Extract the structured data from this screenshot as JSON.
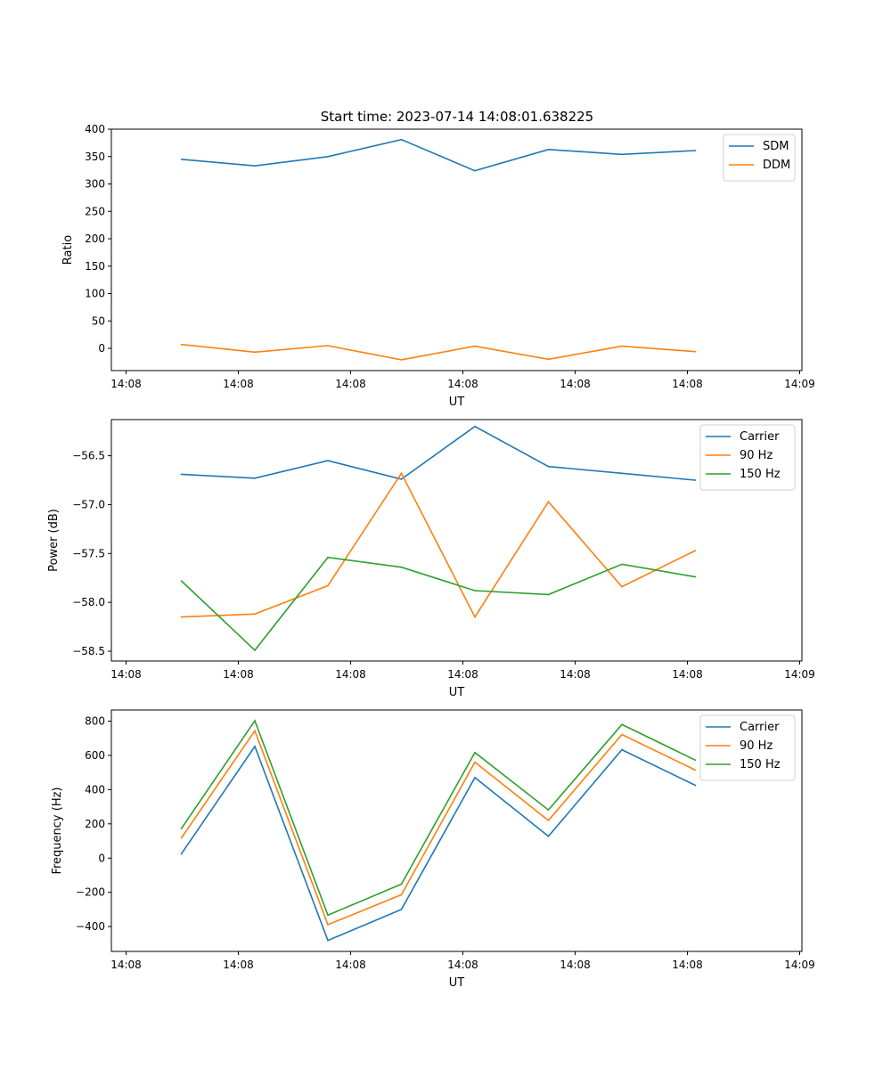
{
  "figure_title": "Start time: 2023-07-14 14:08:01.638225",
  "chart_data": [
    {
      "type": "line",
      "xlabel": "UT",
      "ylabel": "Ratio",
      "x_ticks": [
        "14:08",
        "14:08",
        "14:08",
        "14:08",
        "14:08",
        "14:08",
        "14:09"
      ],
      "y_ticks": [
        0,
        50,
        100,
        150,
        200,
        250,
        300,
        350,
        400
      ],
      "ylim": [
        -40.6,
        400
      ],
      "x_samples": [
        1,
        2,
        3,
        4,
        5,
        6,
        7,
        8
      ],
      "legend_position": "upper right",
      "series": [
        {
          "name": "SDM",
          "color": "#1f77b4",
          "values": [
            345,
            333,
            350,
            381,
            324,
            363,
            354,
            361
          ]
        },
        {
          "name": "DDM",
          "color": "#ff7f0e",
          "values": [
            7,
            -7,
            5,
            -21,
            4,
            -20,
            4,
            -6
          ]
        }
      ]
    },
    {
      "type": "line",
      "xlabel": "UT",
      "ylabel": "Power (dB)",
      "x_ticks": [
        "14:08",
        "14:08",
        "14:08",
        "14:08",
        "14:08",
        "14:08",
        "14:09"
      ],
      "y_ticks": [
        "−58.5",
        "−58.0",
        "−57.5",
        "−57.0",
        "−56.5"
      ],
      "y_tick_values": [
        -58.5,
        -58.0,
        -57.5,
        -57.0,
        -56.5
      ],
      "ylim": [
        -58.6,
        -56.13
      ],
      "x_samples": [
        1,
        2,
        3,
        4,
        5,
        6,
        7,
        8
      ],
      "legend_position": "upper right",
      "series": [
        {
          "name": "Carrier",
          "color": "#1f77b4",
          "values": [
            -56.69,
            -56.73,
            -56.55,
            -56.74,
            -56.2,
            -56.61,
            -56.68,
            -56.75
          ]
        },
        {
          "name": "90 Hz",
          "color": "#ff7f0e",
          "values": [
            -58.15,
            -58.12,
            -57.83,
            -56.68,
            -58.15,
            -56.97,
            -57.84,
            -57.47
          ]
        },
        {
          "name": "150 Hz",
          "color": "#2ca02c",
          "values": [
            -57.78,
            -58.49,
            -57.54,
            -57.64,
            -57.88,
            -57.92,
            -57.61,
            -57.74
          ]
        }
      ]
    },
    {
      "type": "line",
      "xlabel": "UT",
      "ylabel": "Frequency (Hz)",
      "x_ticks": [
        "14:08",
        "14:08",
        "14:08",
        "14:08",
        "14:08",
        "14:08",
        "14:09"
      ],
      "y_ticks": [
        "−400",
        "−200",
        "0",
        "200",
        "400",
        "600",
        "800"
      ],
      "y_tick_values": [
        -400,
        -200,
        0,
        200,
        400,
        600,
        800
      ],
      "ylim": [
        -545,
        865
      ],
      "x_samples": [
        1,
        2,
        3,
        4,
        5,
        6,
        7,
        8
      ],
      "legend_position": "upper right",
      "series": [
        {
          "name": "Carrier",
          "color": "#1f77b4",
          "values": [
            24,
            652,
            -481,
            -300,
            470,
            127,
            633,
            425
          ]
        },
        {
          "name": "90 Hz",
          "color": "#ff7f0e",
          "values": [
            117,
            744,
            -389,
            -214,
            560,
            220,
            722,
            514
          ]
        },
        {
          "name": "150 Hz",
          "color": "#2ca02c",
          "values": [
            172,
            802,
            -333,
            -152,
            617,
            281,
            780,
            572
          ]
        }
      ]
    }
  ]
}
